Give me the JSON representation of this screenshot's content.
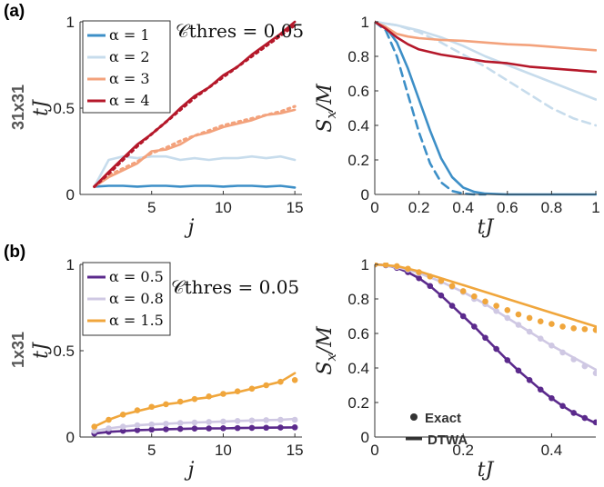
{
  "labels": {
    "panel_a": "(a)",
    "panel_b": "(b)",
    "row_a": "31x31",
    "row_b": "1x31",
    "annotation": "𝒞thres = 0.05",
    "annotation_b": "𝒞thres = 0.05",
    "exact": "Exact",
    "dtwa": "DTWA"
  },
  "colors": {
    "blue": "#3d8fc7",
    "lightblue": "#c7dcec",
    "salmon": "#f3a27c",
    "red": "#b5182a",
    "purple": "#5b2a8c",
    "lavender": "#cfc8e3",
    "orange": "#f0a63c"
  },
  "chart_data": [
    {
      "id": "a_left",
      "type": "line",
      "xlabel": "j",
      "ylabel": "tJ",
      "xlim": [
        0,
        15.5
      ],
      "ylim": [
        0,
        1
      ],
      "xticks": [
        5,
        10,
        15
      ],
      "yticks": [
        0,
        0.5,
        1
      ],
      "xtick_labels": [
        "5",
        "10",
        "15"
      ],
      "ytick_labels": [
        "0",
        "0.5",
        "1"
      ],
      "legend": [
        "α = 1",
        "α = 2",
        "α = 3",
        "α = 4"
      ],
      "series": [
        {
          "name": "α = 1",
          "color": "blue",
          "style": "solid",
          "x": [
            1,
            2,
            3,
            4,
            5,
            6,
            7,
            8,
            9,
            10,
            11,
            12,
            13,
            14,
            15
          ],
          "y": [
            0.045,
            0.05,
            0.05,
            0.045,
            0.05,
            0.05,
            0.045,
            0.05,
            0.05,
            0.045,
            0.05,
            0.05,
            0.045,
            0.05,
            0.04
          ]
        },
        {
          "name": "α = 2",
          "color": "lightblue",
          "style": "solid",
          "x": [
            1,
            2,
            3,
            4,
            5,
            6,
            7,
            8,
            9,
            10,
            11,
            12,
            13,
            14,
            15
          ],
          "y": [
            0.045,
            0.2,
            0.22,
            0.21,
            0.22,
            0.22,
            0.2,
            0.21,
            0.2,
            0.21,
            0.21,
            0.22,
            0.21,
            0.22,
            0.2
          ]
        },
        {
          "name": "α = 3 exact",
          "color": "salmon",
          "style": "dotted",
          "x": [
            1,
            2,
            3,
            4,
            5,
            6,
            7,
            8,
            9,
            10,
            11,
            12,
            13,
            14,
            15
          ],
          "y": [
            0.045,
            0.11,
            0.15,
            0.19,
            0.24,
            0.27,
            0.31,
            0.34,
            0.37,
            0.4,
            0.42,
            0.44,
            0.46,
            0.48,
            0.51
          ]
        },
        {
          "name": "α = 3",
          "color": "salmon",
          "style": "solid",
          "x": [
            1,
            2,
            3,
            4,
            5,
            6,
            7,
            8,
            9,
            10,
            11,
            12,
            13,
            14,
            15
          ],
          "y": [
            0.045,
            0.1,
            0.14,
            0.18,
            0.25,
            0.26,
            0.29,
            0.34,
            0.36,
            0.39,
            0.41,
            0.43,
            0.46,
            0.47,
            0.49
          ]
        },
        {
          "name": "α = 4 exact",
          "color": "red",
          "style": "dotted",
          "x": [
            1,
            2,
            3,
            4,
            5,
            6,
            7,
            8,
            9,
            10,
            11,
            12,
            13,
            14,
            15
          ],
          "y": [
            0.045,
            0.12,
            0.2,
            0.28,
            0.35,
            0.42,
            0.49,
            0.56,
            0.62,
            0.68,
            0.74,
            0.8,
            0.86,
            0.92,
            0.98
          ]
        },
        {
          "name": "α = 4",
          "color": "red",
          "style": "solid",
          "x": [
            1,
            2,
            3,
            4,
            5,
            6,
            7,
            8,
            9,
            10,
            11,
            12,
            13,
            14,
            15
          ],
          "y": [
            0.045,
            0.13,
            0.21,
            0.29,
            0.35,
            0.42,
            0.5,
            0.57,
            0.62,
            0.69,
            0.74,
            0.81,
            0.87,
            0.93,
            1.0
          ]
        }
      ]
    },
    {
      "id": "a_right",
      "type": "line",
      "xlabel": "tJ",
      "ylabel": "S_x/M",
      "xlim": [
        0,
        1
      ],
      "ylim": [
        0,
        1
      ],
      "xticks": [
        0,
        0.2,
        0.4,
        0.6,
        0.8,
        1
      ],
      "yticks": [
        0,
        0.2,
        0.4,
        0.6,
        0.8,
        1
      ],
      "xtick_labels": [
        "0",
        "0.2",
        "0.4",
        "0.6",
        "0.8",
        "1"
      ],
      "ytick_labels": [
        "0",
        "0.2",
        "0.4",
        "0.6",
        "0.8",
        "1"
      ],
      "series": [
        {
          "name": "α = 1",
          "color": "blue",
          "style": "solid",
          "x": [
            0,
            0.05,
            0.1,
            0.15,
            0.2,
            0.25,
            0.3,
            0.35,
            0.4,
            0.45,
            0.5,
            0.55,
            0.6,
            0.7,
            0.8,
            0.9,
            1.0
          ],
          "y": [
            1,
            0.97,
            0.88,
            0.73,
            0.55,
            0.37,
            0.21,
            0.1,
            0.04,
            0.015,
            0.005,
            0.002,
            0,
            0,
            0,
            0,
            0
          ]
        },
        {
          "name": "α = 1 exact",
          "color": "blue",
          "style": "dashed",
          "x": [
            0,
            0.05,
            0.1,
            0.15,
            0.2,
            0.25,
            0.3,
            0.35,
            0.4,
            0.45,
            0.5
          ],
          "y": [
            1,
            0.95,
            0.8,
            0.58,
            0.36,
            0.18,
            0.07,
            0.02,
            0.005,
            0,
            0
          ]
        },
        {
          "name": "α = 2",
          "color": "lightblue",
          "style": "solid",
          "x": [
            0,
            0.1,
            0.2,
            0.3,
            0.4,
            0.5,
            0.6,
            0.7,
            0.8,
            0.9,
            1.0
          ],
          "y": [
            1,
            0.98,
            0.95,
            0.91,
            0.86,
            0.8,
            0.75,
            0.7,
            0.65,
            0.6,
            0.55
          ]
        },
        {
          "name": "α = 2 exact",
          "color": "lightblue",
          "style": "dashed",
          "x": [
            0,
            0.1,
            0.2,
            0.3,
            0.4,
            0.5,
            0.6,
            0.7,
            0.8,
            0.9,
            1.0
          ],
          "y": [
            1,
            0.98,
            0.94,
            0.88,
            0.81,
            0.74,
            0.66,
            0.58,
            0.5,
            0.44,
            0.4
          ]
        },
        {
          "name": "α = 3",
          "color": "salmon",
          "style": "solid",
          "x": [
            0,
            0.05,
            0.1,
            0.15,
            0.2,
            0.3,
            0.4,
            0.5,
            0.6,
            0.7,
            0.8,
            0.9,
            1.0
          ],
          "y": [
            1,
            0.97,
            0.93,
            0.915,
            0.905,
            0.895,
            0.89,
            0.88,
            0.87,
            0.865,
            0.855,
            0.845,
            0.835
          ]
        },
        {
          "name": "α = 4",
          "color": "red",
          "style": "solid",
          "x": [
            0,
            0.05,
            0.1,
            0.15,
            0.2,
            0.3,
            0.4,
            0.5,
            0.6,
            0.7,
            0.8,
            0.9,
            1.0
          ],
          "y": [
            1,
            0.96,
            0.91,
            0.87,
            0.84,
            0.81,
            0.79,
            0.77,
            0.76,
            0.74,
            0.73,
            0.72,
            0.71
          ]
        }
      ]
    },
    {
      "id": "b_left",
      "type": "line",
      "xlabel": "j",
      "ylabel": "tJ",
      "xlim": [
        0,
        15.5
      ],
      "ylim": [
        0,
        1
      ],
      "xticks": [
        5,
        10,
        15
      ],
      "yticks": [
        0,
        0.5,
        1
      ],
      "xtick_labels": [
        "5",
        "10",
        "15"
      ],
      "ytick_labels": [
        "0",
        "0.5",
        "1"
      ],
      "legend": [
        "α = 0.5",
        "α = 0.8",
        "α = 1.5"
      ],
      "series": [
        {
          "name": "α = 0.5",
          "color": "purple",
          "style": "solid",
          "x": [
            1,
            2,
            3,
            4,
            5,
            6,
            7,
            8,
            9,
            10,
            11,
            12,
            13,
            14,
            15
          ],
          "y": [
            0.02,
            0.03,
            0.035,
            0.04,
            0.042,
            0.045,
            0.047,
            0.049,
            0.05,
            0.05,
            0.052,
            0.053,
            0.054,
            0.055,
            0.056
          ]
        },
        {
          "name": "α = 0.5 exact",
          "color": "purple",
          "style": "dots",
          "x": [
            1,
            2,
            3,
            4,
            5,
            6,
            7,
            8,
            9,
            10,
            11,
            12,
            13,
            14,
            15
          ],
          "y": [
            0.02,
            0.03,
            0.036,
            0.04,
            0.043,
            0.045,
            0.047,
            0.049,
            0.05,
            0.051,
            0.052,
            0.053,
            0.054,
            0.055,
            0.056
          ]
        },
        {
          "name": "α = 0.8",
          "color": "lavender",
          "style": "solid",
          "x": [
            1,
            2,
            3,
            4,
            5,
            6,
            7,
            8,
            9,
            10,
            11,
            12,
            13,
            14,
            15
          ],
          "y": [
            0.035,
            0.05,
            0.06,
            0.068,
            0.073,
            0.077,
            0.081,
            0.084,
            0.087,
            0.09,
            0.093,
            0.096,
            0.098,
            0.1,
            0.105
          ]
        },
        {
          "name": "α = 0.8 exact",
          "color": "lavender",
          "style": "dots",
          "x": [
            1,
            2,
            3,
            4,
            5,
            6,
            7,
            8,
            9,
            10,
            11,
            12,
            13,
            14,
            15
          ],
          "y": [
            0.035,
            0.05,
            0.06,
            0.068,
            0.073,
            0.077,
            0.081,
            0.084,
            0.087,
            0.09,
            0.093,
            0.096,
            0.098,
            0.1,
            0.1
          ]
        },
        {
          "name": "α = 1.5",
          "color": "orange",
          "style": "solid",
          "x": [
            1,
            2,
            3,
            4,
            5,
            6,
            7,
            8,
            9,
            10,
            11,
            12,
            13,
            14,
            15
          ],
          "y": [
            0.06,
            0.1,
            0.13,
            0.15,
            0.17,
            0.19,
            0.2,
            0.22,
            0.23,
            0.25,
            0.26,
            0.28,
            0.3,
            0.32,
            0.37
          ]
        },
        {
          "name": "α = 1.5 exact",
          "color": "orange",
          "style": "dots",
          "x": [
            1,
            2,
            3,
            4,
            5,
            6,
            7,
            8,
            9,
            10,
            11,
            12,
            13,
            14,
            15
          ],
          "y": [
            0.06,
            0.1,
            0.13,
            0.155,
            0.175,
            0.19,
            0.205,
            0.22,
            0.235,
            0.25,
            0.265,
            0.28,
            0.3,
            0.32,
            0.33
          ]
        }
      ]
    },
    {
      "id": "b_right",
      "type": "line",
      "xlabel": "tJ",
      "ylabel": "S_x/M",
      "xlim": [
        0,
        0.5
      ],
      "ylim": [
        0,
        1
      ],
      "xticks": [
        0,
        0.2,
        0.4
      ],
      "yticks": [
        0,
        0.2,
        0.4,
        0.6,
        0.8,
        1
      ],
      "xtick_labels": [
        "0",
        "0.2",
        "0.4"
      ],
      "ytick_labels": [
        "0",
        "0.2",
        "0.4",
        "0.6",
        "0.8",
        "1"
      ],
      "series": [
        {
          "name": "α = 0.5",
          "color": "purple",
          "style": "solid",
          "x": [
            0,
            0.025,
            0.05,
            0.075,
            0.1,
            0.125,
            0.15,
            0.175,
            0.2,
            0.225,
            0.25,
            0.275,
            0.3,
            0.325,
            0.35,
            0.375,
            0.4,
            0.425,
            0.45,
            0.475,
            0.5
          ],
          "y": [
            1,
            0.995,
            0.98,
            0.955,
            0.92,
            0.875,
            0.82,
            0.76,
            0.7,
            0.64,
            0.575,
            0.51,
            0.445,
            0.385,
            0.33,
            0.275,
            0.225,
            0.18,
            0.14,
            0.11,
            0.08
          ]
        },
        {
          "name": "α = 0.5 exact",
          "color": "purple",
          "style": "dots",
          "x": [
            0,
            0.025,
            0.05,
            0.075,
            0.1,
            0.125,
            0.15,
            0.175,
            0.2,
            0.225,
            0.25,
            0.275,
            0.3,
            0.325,
            0.35,
            0.375,
            0.4,
            0.425,
            0.45,
            0.475,
            0.5
          ],
          "y": [
            1,
            0.995,
            0.98,
            0.955,
            0.92,
            0.875,
            0.82,
            0.76,
            0.7,
            0.64,
            0.575,
            0.51,
            0.445,
            0.385,
            0.33,
            0.275,
            0.225,
            0.18,
            0.14,
            0.11,
            0.085
          ]
        },
        {
          "name": "α = 0.8",
          "color": "lavender",
          "style": "solid",
          "x": [
            0,
            0.05,
            0.1,
            0.15,
            0.2,
            0.25,
            0.3,
            0.35,
            0.4,
            0.45,
            0.5
          ],
          "y": [
            1,
            0.985,
            0.95,
            0.9,
            0.84,
            0.77,
            0.69,
            0.61,
            0.53,
            0.46,
            0.39
          ]
        },
        {
          "name": "α = 0.8 exact",
          "color": "lavender",
          "style": "dots",
          "x": [
            0,
            0.025,
            0.05,
            0.075,
            0.1,
            0.125,
            0.15,
            0.175,
            0.2,
            0.225,
            0.25,
            0.275,
            0.3,
            0.325,
            0.35,
            0.375,
            0.4,
            0.425,
            0.45,
            0.475,
            0.5
          ],
          "y": [
            1,
            0.997,
            0.985,
            0.97,
            0.95,
            0.93,
            0.9,
            0.87,
            0.84,
            0.8,
            0.77,
            0.73,
            0.69,
            0.65,
            0.61,
            0.57,
            0.53,
            0.49,
            0.45,
            0.41,
            0.37
          ]
        },
        {
          "name": "α = 1.5",
          "color": "orange",
          "style": "solid",
          "x": [
            0,
            0.05,
            0.1,
            0.15,
            0.2,
            0.25,
            0.3,
            0.35,
            0.4,
            0.45,
            0.5
          ],
          "y": [
            1,
            0.99,
            0.96,
            0.92,
            0.88,
            0.84,
            0.8,
            0.76,
            0.72,
            0.68,
            0.64
          ]
        },
        {
          "name": "α = 1.5 exact",
          "color": "orange",
          "style": "dots",
          "x": [
            0,
            0.025,
            0.05,
            0.075,
            0.1,
            0.125,
            0.15,
            0.175,
            0.2,
            0.225,
            0.25,
            0.275,
            0.3,
            0.325,
            0.35,
            0.375,
            0.4,
            0.425,
            0.45,
            0.475,
            0.5
          ],
          "y": [
            1,
            0.998,
            0.99,
            0.975,
            0.955,
            0.93,
            0.905,
            0.875,
            0.845,
            0.815,
            0.785,
            0.76,
            0.735,
            0.71,
            0.69,
            0.67,
            0.655,
            0.64,
            0.63,
            0.625,
            0.62
          ]
        }
      ]
    }
  ]
}
